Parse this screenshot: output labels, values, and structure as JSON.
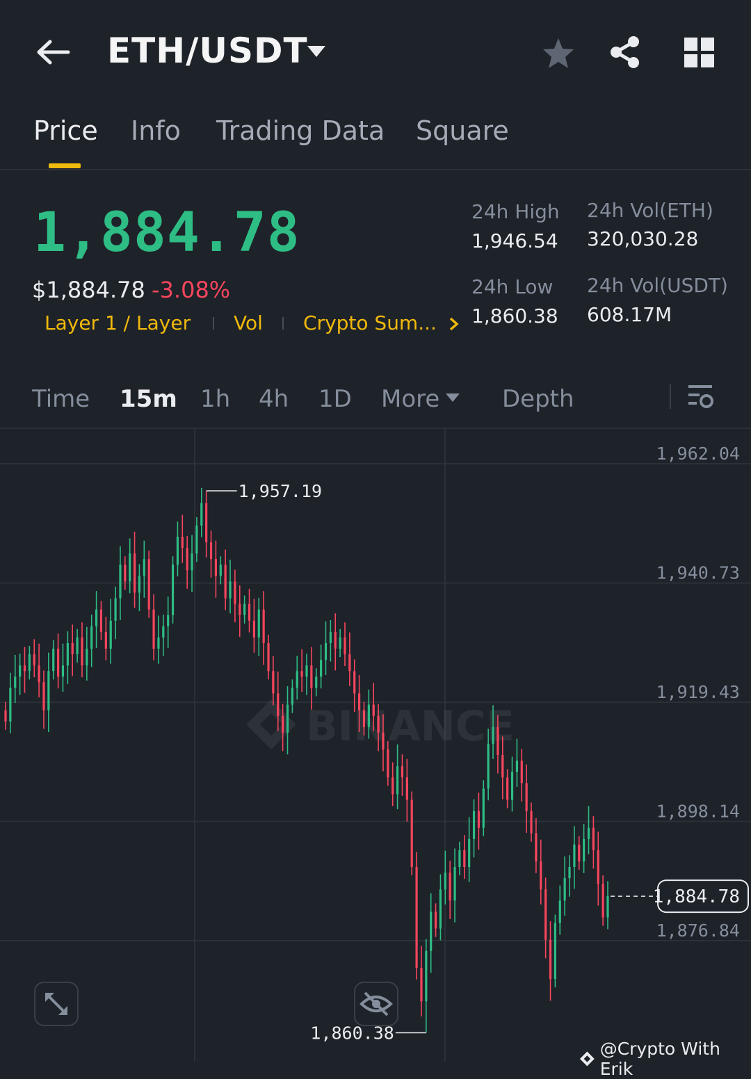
{
  "header": {
    "pair": "ETH/USDT",
    "icons": [
      "back-arrow-icon",
      "dropdown-caret-icon",
      "star-icon",
      "share-icon",
      "grid-icon"
    ]
  },
  "tabs": [
    {
      "label": "Price",
      "active": true
    },
    {
      "label": "Info",
      "active": false
    },
    {
      "label": "Trading Data",
      "active": false
    },
    {
      "label": "Square",
      "active": false
    }
  ],
  "ticker": {
    "last_price": "1,884.78",
    "usd_price": "$1,884.78",
    "change": "-3.08%",
    "tags": [
      "Layer 1 / Layer",
      "Vol",
      "Crypto Sum..."
    ],
    "high_label": "24h High",
    "high_value": "1,946.54",
    "low_label": "24h Low",
    "low_value": "1,860.38",
    "vol_eth_label": "24h Vol(ETH)",
    "vol_eth_value": "320,030.28",
    "vol_usdt_label": "24h Vol(USDT)",
    "vol_usdt_value": "608.17M"
  },
  "timeframes": {
    "items": [
      "Time",
      "15m",
      "1h",
      "4h",
      "1D",
      "More",
      "Depth"
    ],
    "selected": "15m"
  },
  "colors": {
    "up": "#2ebd85",
    "down": "#f6465d",
    "accent": "#f0b90b",
    "background": "#1e2229"
  },
  "chart_data": {
    "type": "candlestick",
    "y_axis_labels": [
      "1,962.04",
      "1,940.73",
      "1,919.43",
      "1,898.14",
      "1,876.84"
    ],
    "ylim": [
      1855.0,
      1968.0
    ],
    "grid": true,
    "high_marker": "1,957.19",
    "low_marker": "1,860.38",
    "current_price_label": "1,884.78",
    "watermark": "BINANCE",
    "closes": [
      1916,
      1922,
      1924,
      1926,
      1925,
      1928,
      1926,
      1923,
      1918,
      1925,
      1929,
      1924,
      1926,
      1930,
      1928,
      1931,
      1926,
      1929,
      1933,
      1936,
      1932,
      1929,
      1934,
      1938,
      1944,
      1941,
      1946,
      1939,
      1942,
      1945,
      1936,
      1929,
      1931,
      1933,
      1935,
      1944,
      1949,
      1947,
      1943,
      1946,
      1951,
      1955,
      1948,
      1945,
      1942,
      1944,
      1938,
      1941,
      1937,
      1935,
      1937,
      1934,
      1931,
      1936,
      1930,
      1925,
      1921,
      1917,
      1914,
      1919,
      1922,
      1925,
      1924,
      1926,
      1922,
      1924,
      1927,
      1930,
      1932,
      1929,
      1931,
      1928,
      1925,
      1921,
      1918,
      1915,
      1919,
      1917,
      1914,
      1911,
      1906,
      1903,
      1908,
      1906,
      1902,
      1890,
      1872,
      1866,
      1875,
      1882,
      1879,
      1886,
      1889,
      1884,
      1890,
      1893,
      1890,
      1895,
      1900,
      1897,
      1904,
      1912,
      1915,
      1910,
      1906,
      1902,
      1907,
      1909,
      1905,
      1900,
      1896,
      1891,
      1886,
      1877,
      1870,
      1880,
      1884,
      1888,
      1890,
      1894,
      1891,
      1895,
      1897,
      1893,
      1887,
      1881,
      1884.78
    ]
  },
  "bottom": {
    "attribution": "@Crypto With Erik"
  }
}
